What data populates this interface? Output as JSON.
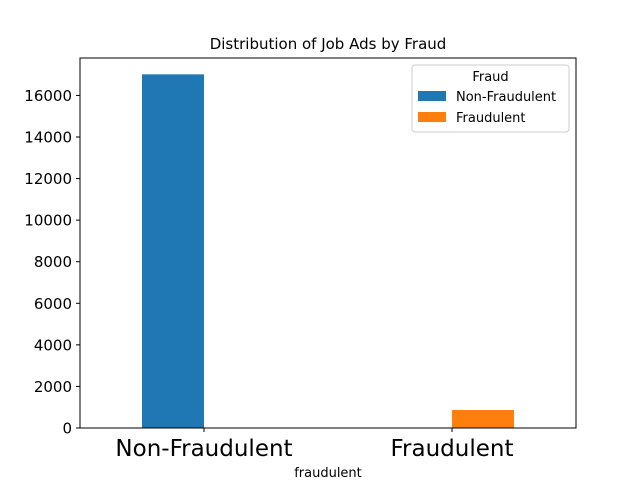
{
  "chart_data": {
    "type": "bar",
    "title": "Distribution of Job Ads by Fraud",
    "xlabel": "fraudulent",
    "ylabel": "",
    "categories": [
      "Non-Fraudulent",
      "Fraudulent"
    ],
    "series": [
      {
        "name": "Non-Fraudulent",
        "color": "#1f77b4",
        "values": [
          17014,
          0
        ]
      },
      {
        "name": "Fraudulent",
        "color": "#ff7f0e",
        "values": [
          0,
          866
        ]
      }
    ],
    "ylim": [
      0,
      17800
    ],
    "yticks": [
      0,
      2000,
      4000,
      6000,
      8000,
      10000,
      12000,
      14000,
      16000
    ],
    "legend": {
      "title": "Fraud",
      "position": "top-right"
    },
    "grid": false
  }
}
